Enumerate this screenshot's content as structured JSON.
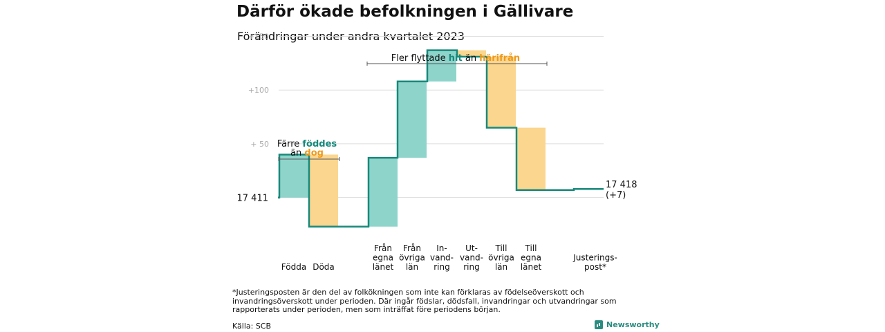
{
  "header": {
    "title": "Därför ökade befolkningen i Gällivare",
    "subtitle": "Förändringar under andra kvartalet 2023"
  },
  "chart_data": {
    "type": "waterfall",
    "title": "Därför ökade befolkningen i Gällivare",
    "subtitle": "Förändringar under andra kvartalet 2023",
    "start": {
      "value": 17411,
      "label": "17  411"
    },
    "end": {
      "value": 17418,
      "label": "17 418",
      "change_label": "(+7)"
    },
    "y_ticks": [
      {
        "value": 150,
        "label": "+150"
      },
      {
        "value": 100,
        "label": "+100"
      },
      {
        "value": 50,
        "label": "+  50"
      }
    ],
    "ylim": [
      -33,
      158
    ],
    "grid": true,
    "steps": [
      {
        "lines": [
          "Födda"
        ],
        "delta": 40,
        "kind": "in"
      },
      {
        "lines": [
          "Döda"
        ],
        "delta": -67,
        "kind": "out"
      },
      {
        "lines": [
          "Från",
          "egna",
          "länet"
        ],
        "delta": 64,
        "kind": "in"
      },
      {
        "lines": [
          "Från",
          "övriga",
          "län"
        ],
        "delta": 71,
        "kind": "in"
      },
      {
        "lines": [
          "In-",
          "vand-",
          "ring"
        ],
        "delta": 29,
        "kind": "in"
      },
      {
        "lines": [
          "Ut-",
          "vand-",
          "ring"
        ],
        "delta": -6,
        "kind": "out"
      },
      {
        "lines": [
          "Till",
          "övriga",
          "län"
        ],
        "delta": -66,
        "kind": "out"
      },
      {
        "lines": [
          "Till",
          "egna",
          "länet"
        ],
        "delta": -58,
        "kind": "out"
      },
      {
        "lines": [
          "Justerings-",
          "post*"
        ],
        "delta": 1,
        "kind": "adjust"
      }
    ],
    "annotations": [
      {
        "parts": [
          {
            "text": "Färre ",
            "style": "plain"
          },
          {
            "text": "föddes",
            "style": "in"
          }
        ],
        "line2": [
          {
            "text": "än ",
            "style": "plain"
          },
          {
            "text": "dog",
            "style": "out"
          }
        ]
      },
      {
        "parts": [
          {
            "text": "Fler flyttade ",
            "style": "plain"
          },
          {
            "text": "hit",
            "style": "in"
          },
          {
            "text": "  än ",
            "style": "plain"
          },
          {
            "text": "härifrån",
            "style": "out"
          }
        ]
      }
    ],
    "colors": {
      "in": "#8ed4cb",
      "out": "#fbd68f",
      "line": "#17897b",
      "grid": "#dddddd",
      "tick": "#aaaaaa",
      "in_text": "#17897b",
      "out_text": "#ef9a1a"
    }
  },
  "footer": {
    "footnote": "*Justeringsposten är den del av folkökningen som inte kan förklaras av födelseöverskott och invandringsöverskott under perioden. Där ingår födslar, dödsfall, invandringar och utvandringar som rapporterats under perioden, men som inträffat före periodens början.",
    "source": "Källa: SCB",
    "brand": "Newsworthy"
  }
}
